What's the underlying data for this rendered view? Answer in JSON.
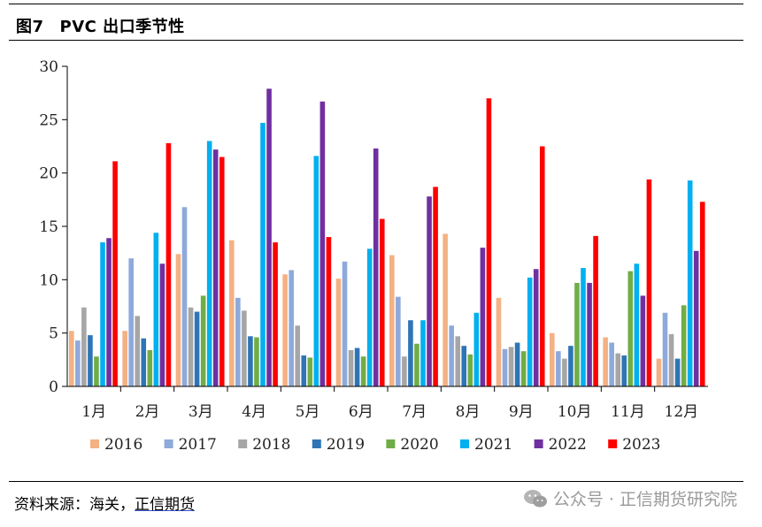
{
  "figure": {
    "number": "图7",
    "title": "PVC 出口季节性",
    "source_prefix": "资料来源：海关，",
    "source_org": "正信期货",
    "watermark": "公众号 · 正信期货研究院",
    "watermark_icon": "wechat-icon"
  },
  "chart_data": {
    "type": "bar",
    "title": "PVC 出口季节性",
    "xlabel": "",
    "ylabel": "",
    "ylim": [
      0,
      30
    ],
    "yticks": [
      0,
      5,
      10,
      15,
      20,
      25,
      30
    ],
    "grid": false,
    "legend_position": "bottom",
    "categories": [
      "1月",
      "2月",
      "3月",
      "4月",
      "5月",
      "6月",
      "7月",
      "8月",
      "9月",
      "10月",
      "11月",
      "12月"
    ],
    "series": [
      {
        "name": "2016",
        "color": "#F4B183",
        "values": [
          5.2,
          5.2,
          12.4,
          13.7,
          10.5,
          10.1,
          12.3,
          14.3,
          8.3,
          5.0,
          4.6,
          2.6
        ]
      },
      {
        "name": "2017",
        "color": "#8EA9DB",
        "values": [
          4.3,
          12.0,
          16.8,
          8.3,
          10.9,
          11.7,
          8.4,
          5.7,
          3.5,
          3.3,
          4.1,
          6.9
        ]
      },
      {
        "name": "2018",
        "color": "#A6A6A6",
        "values": [
          7.4,
          6.6,
          7.4,
          7.1,
          5.7,
          3.4,
          2.8,
          4.7,
          3.7,
          2.6,
          3.1,
          4.9
        ]
      },
      {
        "name": "2019",
        "color": "#2E75B6",
        "values": [
          4.8,
          4.5,
          7.0,
          4.7,
          2.9,
          3.6,
          6.2,
          3.8,
          4.1,
          3.8,
          2.9,
          2.6
        ]
      },
      {
        "name": "2020",
        "color": "#70AD47",
        "values": [
          2.8,
          3.4,
          8.5,
          4.6,
          2.7,
          2.8,
          4.0,
          3.0,
          3.3,
          9.7,
          10.8,
          7.6
        ]
      },
      {
        "name": "2021",
        "color": "#00B0F0",
        "values": [
          13.5,
          14.4,
          23.0,
          24.7,
          21.6,
          12.9,
          6.2,
          6.9,
          10.2,
          11.1,
          11.5,
          19.3
        ]
      },
      {
        "name": "2022",
        "color": "#7030A0",
        "values": [
          13.9,
          11.5,
          22.2,
          27.9,
          26.7,
          22.3,
          17.8,
          13.0,
          11.0,
          9.7,
          8.5,
          12.7
        ]
      },
      {
        "name": "2023",
        "color": "#FF0000",
        "values": [
          21.1,
          22.8,
          21.5,
          13.5,
          14.0,
          15.7,
          18.7,
          27.0,
          22.5,
          14.1,
          19.4,
          17.3
        ]
      }
    ]
  }
}
